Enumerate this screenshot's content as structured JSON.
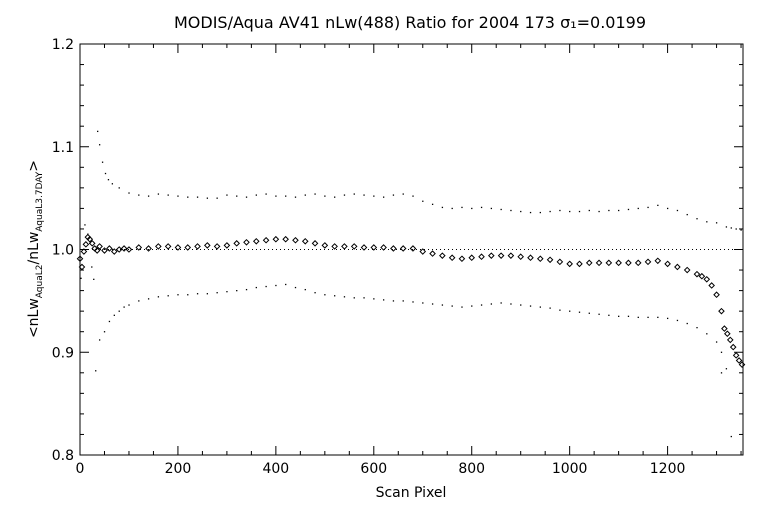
{
  "chart_data": {
    "type": "scatter",
    "title": "MODIS/Aqua AV41 nLw(488) Ratio for 2004 173 σ₁=0.0199",
    "xlabel": "Scan Pixel",
    "ylabel": "<nLw_AquaL2 / nLw_AquaL3.7DAY>",
    "xlim": [
      0,
      1354
    ],
    "ylim": [
      0.8,
      1.2
    ],
    "x_ticks": [
      0,
      200,
      400,
      600,
      800,
      1000,
      1200
    ],
    "y_ticks": [
      0.8,
      0.9,
      1.0,
      1.1,
      1.2
    ],
    "x_tick_labels": [
      "0",
      "200",
      "400",
      "600",
      "800",
      "1000",
      "1200"
    ],
    "y_tick_labels": [
      "0.8",
      "0.9",
      "1.0",
      "1.1",
      "1.2"
    ],
    "reference_line": 1.0,
    "grid": false,
    "series": [
      {
        "marker": "diamond",
        "points": [
          [
            0,
            0.991
          ],
          [
            4,
            0.983
          ],
          [
            8,
            0.998
          ],
          [
            12,
            1.005
          ],
          [
            16,
            1.012
          ],
          [
            20,
            1.01
          ],
          [
            25,
            1.006
          ],
          [
            30,
            1.001
          ],
          [
            35,
            0.999
          ],
          [
            40,
            1.003
          ],
          [
            50,
            0.999
          ],
          [
            60,
            1.001
          ],
          [
            70,
            0.998
          ],
          [
            80,
            1.0
          ],
          [
            90,
            1.001
          ],
          [
            100,
            1.0
          ],
          [
            120,
            1.002
          ],
          [
            140,
            1.001
          ],
          [
            160,
            1.003
          ],
          [
            180,
            1.003
          ],
          [
            200,
            1.002
          ],
          [
            220,
            1.002
          ],
          [
            240,
            1.003
          ],
          [
            260,
            1.004
          ],
          [
            280,
            1.003
          ],
          [
            300,
            1.004
          ],
          [
            320,
            1.006
          ],
          [
            340,
            1.007
          ],
          [
            360,
            1.008
          ],
          [
            380,
            1.009
          ],
          [
            400,
            1.01
          ],
          [
            420,
            1.01
          ],
          [
            440,
            1.009
          ],
          [
            460,
            1.008
          ],
          [
            480,
            1.006
          ],
          [
            500,
            1.004
          ],
          [
            520,
            1.003
          ],
          [
            540,
            1.003
          ],
          [
            560,
            1.003
          ],
          [
            580,
            1.002
          ],
          [
            600,
            1.002
          ],
          [
            620,
            1.002
          ],
          [
            640,
            1.001
          ],
          [
            660,
            1.001
          ],
          [
            680,
            1.001
          ],
          [
            700,
            0.998
          ],
          [
            720,
            0.996
          ],
          [
            740,
            0.994
          ],
          [
            760,
            0.992
          ],
          [
            780,
            0.991
          ],
          [
            800,
            0.992
          ],
          [
            820,
            0.993
          ],
          [
            840,
            0.994
          ],
          [
            860,
            0.994
          ],
          [
            880,
            0.994
          ],
          [
            900,
            0.993
          ],
          [
            920,
            0.992
          ],
          [
            940,
            0.991
          ],
          [
            960,
            0.99
          ],
          [
            980,
            0.988
          ],
          [
            1000,
            0.986
          ],
          [
            1020,
            0.986
          ],
          [
            1040,
            0.987
          ],
          [
            1060,
            0.987
          ],
          [
            1080,
            0.987
          ],
          [
            1100,
            0.987
          ],
          [
            1120,
            0.987
          ],
          [
            1140,
            0.987
          ],
          [
            1160,
            0.988
          ],
          [
            1180,
            0.989
          ],
          [
            1200,
            0.986
          ],
          [
            1220,
            0.983
          ],
          [
            1240,
            0.98
          ],
          [
            1260,
            0.976
          ],
          [
            1270,
            0.974
          ],
          [
            1280,
            0.971
          ],
          [
            1290,
            0.965
          ],
          [
            1300,
            0.956
          ],
          [
            1310,
            0.94
          ],
          [
            1316,
            0.923
          ],
          [
            1322,
            0.918
          ],
          [
            1328,
            0.912
          ],
          [
            1334,
            0.905
          ],
          [
            1340,
            0.897
          ],
          [
            1346,
            0.892
          ],
          [
            1352,
            0.888
          ]
        ]
      },
      {
        "marker": "dot",
        "points": [
          [
            2,
            0.972
          ],
          [
            10,
            1.024
          ],
          [
            16,
            1.015
          ],
          [
            20,
            1.006
          ],
          [
            24,
            0.983
          ],
          [
            28,
            0.971
          ],
          [
            32,
            0.882
          ],
          [
            36,
            1.115
          ],
          [
            40,
            1.102
          ],
          [
            46,
            1.085
          ],
          [
            52,
            1.074
          ],
          [
            58,
            1.068
          ],
          [
            66,
            1.064
          ],
          [
            80,
            1.06
          ],
          [
            100,
            1.055
          ],
          [
            120,
            1.053
          ],
          [
            140,
            1.052
          ],
          [
            160,
            1.054
          ],
          [
            180,
            1.053
          ],
          [
            200,
            1.052
          ],
          [
            220,
            1.051
          ],
          [
            240,
            1.051
          ],
          [
            260,
            1.05
          ],
          [
            280,
            1.05
          ],
          [
            300,
            1.053
          ],
          [
            320,
            1.052
          ],
          [
            340,
            1.051
          ],
          [
            360,
            1.053
          ],
          [
            380,
            1.054
          ],
          [
            400,
            1.052
          ],
          [
            420,
            1.052
          ],
          [
            440,
            1.051
          ],
          [
            460,
            1.053
          ],
          [
            480,
            1.054
          ],
          [
            500,
            1.052
          ],
          [
            520,
            1.051
          ],
          [
            540,
            1.053
          ],
          [
            560,
            1.054
          ],
          [
            580,
            1.053
          ],
          [
            600,
            1.052
          ],
          [
            620,
            1.051
          ],
          [
            640,
            1.053
          ],
          [
            660,
            1.054
          ],
          [
            680,
            1.052
          ],
          [
            700,
            1.047
          ],
          [
            720,
            1.044
          ],
          [
            740,
            1.041
          ],
          [
            760,
            1.04
          ],
          [
            780,
            1.041
          ],
          [
            800,
            1.04
          ],
          [
            820,
            1.041
          ],
          [
            840,
            1.04
          ],
          [
            860,
            1.039
          ],
          [
            880,
            1.038
          ],
          [
            900,
            1.037
          ],
          [
            920,
            1.036
          ],
          [
            940,
            1.036
          ],
          [
            960,
            1.037
          ],
          [
            980,
            1.038
          ],
          [
            1000,
            1.037
          ],
          [
            1020,
            1.037
          ],
          [
            1040,
            1.038
          ],
          [
            1060,
            1.037
          ],
          [
            1080,
            1.038
          ],
          [
            1100,
            1.038
          ],
          [
            1120,
            1.039
          ],
          [
            1140,
            1.04
          ],
          [
            1160,
            1.041
          ],
          [
            1180,
            1.043
          ],
          [
            1200,
            1.04
          ],
          [
            1220,
            1.038
          ],
          [
            1240,
            1.034
          ],
          [
            1260,
            1.03
          ],
          [
            1280,
            1.027
          ],
          [
            1300,
            1.026
          ],
          [
            1310,
            0.88
          ],
          [
            1320,
            1.022
          ],
          [
            1330,
            1.021
          ],
          [
            1340,
            1.02
          ],
          [
            1350,
            1.019
          ]
        ]
      },
      {
        "marker": "dot",
        "points": [
          [
            40,
            0.912
          ],
          [
            50,
            0.92
          ],
          [
            60,
            0.93
          ],
          [
            70,
            0.936
          ],
          [
            80,
            0.94
          ],
          [
            90,
            0.944
          ],
          [
            100,
            0.946
          ],
          [
            120,
            0.95
          ],
          [
            140,
            0.952
          ],
          [
            160,
            0.954
          ],
          [
            180,
            0.955
          ],
          [
            200,
            0.956
          ],
          [
            220,
            0.956
          ],
          [
            240,
            0.957
          ],
          [
            260,
            0.957
          ],
          [
            280,
            0.958
          ],
          [
            300,
            0.959
          ],
          [
            320,
            0.96
          ],
          [
            340,
            0.961
          ],
          [
            360,
            0.963
          ],
          [
            380,
            0.964
          ],
          [
            400,
            0.965
          ],
          [
            420,
            0.966
          ],
          [
            440,
            0.963
          ],
          [
            460,
            0.961
          ],
          [
            480,
            0.958
          ],
          [
            500,
            0.956
          ],
          [
            520,
            0.955
          ],
          [
            540,
            0.954
          ],
          [
            560,
            0.953
          ],
          [
            580,
            0.953
          ],
          [
            600,
            0.952
          ],
          [
            620,
            0.951
          ],
          [
            640,
            0.95
          ],
          [
            660,
            0.95
          ],
          [
            680,
            0.949
          ],
          [
            700,
            0.948
          ],
          [
            720,
            0.947
          ],
          [
            740,
            0.946
          ],
          [
            760,
            0.945
          ],
          [
            780,
            0.944
          ],
          [
            800,
            0.945
          ],
          [
            820,
            0.946
          ],
          [
            840,
            0.947
          ],
          [
            860,
            0.948
          ],
          [
            880,
            0.947
          ],
          [
            900,
            0.946
          ],
          [
            920,
            0.945
          ],
          [
            940,
            0.944
          ],
          [
            960,
            0.943
          ],
          [
            980,
            0.941
          ],
          [
            1000,
            0.94
          ],
          [
            1020,
            0.939
          ],
          [
            1040,
            0.938
          ],
          [
            1060,
            0.937
          ],
          [
            1080,
            0.936
          ],
          [
            1100,
            0.935
          ],
          [
            1120,
            0.935
          ],
          [
            1140,
            0.934
          ],
          [
            1160,
            0.934
          ],
          [
            1180,
            0.934
          ],
          [
            1200,
            0.933
          ],
          [
            1220,
            0.931
          ],
          [
            1240,
            0.928
          ],
          [
            1260,
            0.924
          ],
          [
            1280,
            0.918
          ],
          [
            1300,
            0.91
          ],
          [
            1310,
            0.9
          ],
          [
            1320,
            0.884
          ],
          [
            1330,
            0.818
          ]
        ]
      }
    ]
  }
}
